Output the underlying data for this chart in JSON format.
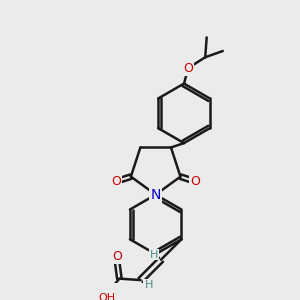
{
  "bg_color": "#ebebeb",
  "bond_color": "#1a1a1a",
  "bond_width": 1.8,
  "atom_colors": {
    "O": "#cc0000",
    "N": "#0000cc",
    "H": "#4a8a8a",
    "C": "#1a1a1a"
  }
}
